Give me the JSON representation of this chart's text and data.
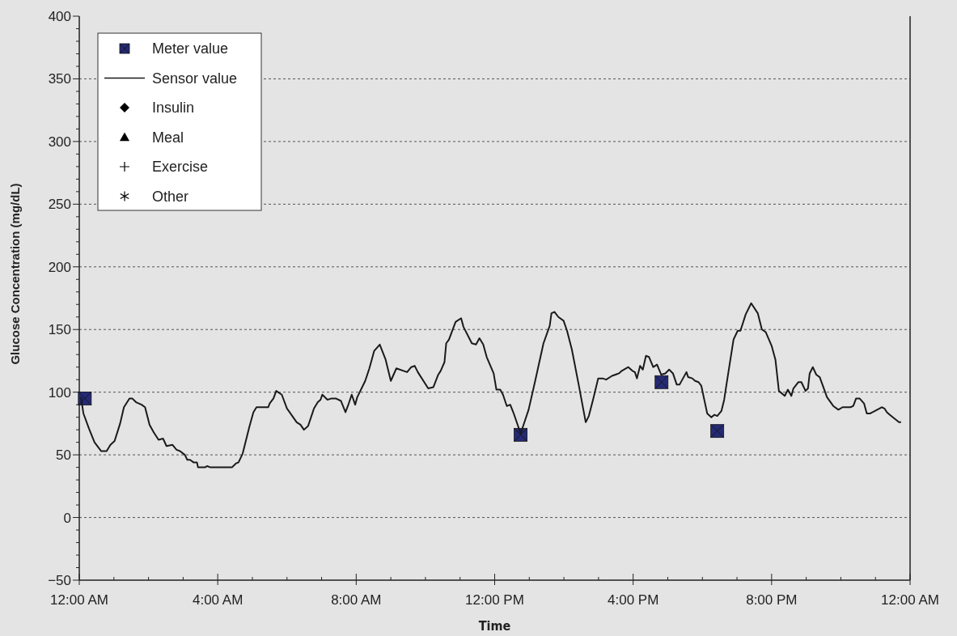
{
  "chart_data": {
    "type": "line",
    "xlabel": "Time",
    "ylabel": "Glucose Concentration (mg/dL)",
    "xlim": [
      0,
      24
    ],
    "xticks": [
      {
        "value": 0,
        "label": "12:00 AM"
      },
      {
        "value": 1,
        "label": null
      },
      {
        "value": 2,
        "label": null
      },
      {
        "value": 3,
        "label": null
      },
      {
        "value": 4,
        "label": "4:00 AM"
      },
      {
        "value": 5,
        "label": null
      },
      {
        "value": 6,
        "label": null
      },
      {
        "value": 7,
        "label": null
      },
      {
        "value": 8,
        "label": "8:00 AM"
      },
      {
        "value": 9,
        "label": null
      },
      {
        "value": 10,
        "label": null
      },
      {
        "value": 11,
        "label": null
      },
      {
        "value": 12,
        "label": "12:00 PM"
      },
      {
        "value": 13,
        "label": null
      },
      {
        "value": 14,
        "label": null
      },
      {
        "value": 15,
        "label": null
      },
      {
        "value": 16,
        "label": "4:00 PM"
      },
      {
        "value": 17,
        "label": null
      },
      {
        "value": 18,
        "label": null
      },
      {
        "value": 19,
        "label": null
      },
      {
        "value": 20,
        "label": "8:00 PM"
      },
      {
        "value": 21,
        "label": null
      },
      {
        "value": 22,
        "label": null
      },
      {
        "value": 23,
        "label": null
      },
      {
        "value": 24,
        "label": "12:00 AM"
      }
    ],
    "ylim": [
      -50,
      400
    ],
    "yticks": [
      {
        "value": -50,
        "label": "−50"
      },
      {
        "value": -40,
        "label": null
      },
      {
        "value": -30,
        "label": null
      },
      {
        "value": -20,
        "label": null
      },
      {
        "value": -10,
        "label": null
      },
      0,
      {
        "value": 10,
        "label": null
      },
      {
        "value": 20,
        "label": null
      },
      {
        "value": 30,
        "label": null
      },
      {
        "value": 40,
        "label": null
      },
      50,
      {
        "value": 60,
        "label": null
      },
      {
        "value": 70,
        "label": null
      },
      {
        "value": 80,
        "label": null
      },
      {
        "value": 90,
        "label": null
      },
      100,
      {
        "value": 110,
        "label": null
      },
      {
        "value": 120,
        "label": null
      },
      {
        "value": 130,
        "label": null
      },
      {
        "value": 140,
        "label": null
      },
      150,
      {
        "value": 160,
        "label": null
      },
      {
        "value": 170,
        "label": null
      },
      {
        "value": 180,
        "label": null
      },
      {
        "value": 190,
        "label": null
      },
      200,
      {
        "value": 210,
        "label": null
      },
      {
        "value": 220,
        "label": null
      },
      {
        "value": 230,
        "label": null
      },
      {
        "value": 240,
        "label": null
      },
      250,
      {
        "value": 260,
        "label": null
      },
      {
        "value": 270,
        "label": null
      },
      {
        "value": 280,
        "label": null
      },
      {
        "value": 290,
        "label": null
      },
      300,
      {
        "value": 310,
        "label": null
      },
      {
        "value": 320,
        "label": null
      },
      {
        "value": 330,
        "label": null
      },
      {
        "value": 340,
        "label": null
      },
      350,
      {
        "value": 360,
        "label": null
      },
      {
        "value": 370,
        "label": null
      },
      {
        "value": 380,
        "label": null
      },
      {
        "value": 390,
        "label": null
      },
      400
    ],
    "grid": "y",
    "legend": "top left",
    "series": [
      {
        "name": "Meter value",
        "type": "scatter",
        "marker": "square",
        "color": "#252a75",
        "x": [
          0.16,
          12.75,
          16.82,
          18.43
        ],
        "values": [
          95,
          66,
          108,
          69
        ]
      },
      {
        "name": "Sensor value",
        "marker": "none",
        "color": "#1a1a1a",
        "x": [
          0.05,
          0.12,
          0.28,
          0.44,
          0.63,
          0.79,
          0.9,
          1.02,
          1.18,
          1.29,
          1.45,
          1.53,
          1.64,
          1.8,
          1.9,
          2.03,
          2.15,
          2.29,
          2.42,
          2.52,
          2.69,
          2.81,
          2.91,
          3.05,
          3.12,
          3.2,
          3.3,
          3.4,
          3.43,
          3.63,
          3.69,
          3.79,
          4.41,
          4.52,
          4.6,
          4.72,
          4.91,
          5.03,
          5.12,
          5.46,
          5.5,
          5.61,
          5.69,
          5.85,
          6.0,
          6.28,
          6.39,
          6.49,
          6.61,
          6.78,
          6.89,
          6.97,
          7.02,
          7.17,
          7.29,
          7.41,
          7.56,
          7.69,
          7.76,
          7.87,
          7.97,
          8.03,
          8.26,
          8.38,
          8.52,
          8.68,
          8.85,
          9.0,
          9.16,
          9.47,
          9.59,
          9.69,
          9.78,
          10.08,
          10.23,
          10.37,
          10.44,
          10.55,
          10.6,
          10.68,
          10.87,
          11.03,
          11.1,
          11.34,
          11.46,
          11.56,
          11.67,
          11.77,
          11.97,
          12.05,
          12.16,
          12.24,
          12.35,
          12.45,
          12.55,
          12.75,
          12.98,
          13.17,
          13.41,
          13.59,
          13.64,
          13.73,
          13.84,
          13.99,
          14.09,
          14.23,
          14.42,
          14.63,
          14.72,
          14.85,
          14.99,
          15.12,
          15.22,
          15.39,
          15.59,
          15.67,
          15.86,
          15.98,
          16.05,
          16.11,
          16.2,
          16.28,
          16.37,
          16.46,
          16.58,
          16.69,
          16.81,
          16.93,
          17.04,
          17.15,
          17.26,
          17.34,
          17.54,
          17.59,
          17.71,
          17.79,
          17.89,
          17.97,
          18.14,
          18.26,
          18.35,
          18.43,
          18.55,
          18.63,
          18.69,
          18.9,
          19.02,
          19.1,
          19.25,
          19.41,
          19.6,
          19.72,
          19.83,
          20.0,
          20.11,
          20.21,
          20.38,
          20.47,
          20.57,
          20.63,
          20.77,
          20.86,
          20.98,
          21.05,
          21.1,
          21.19,
          21.29,
          21.39,
          21.6,
          21.78,
          21.93,
          22.05,
          22.28,
          22.36,
          22.44,
          22.54,
          22.67,
          22.75,
          22.85,
          23.18,
          23.26,
          23.33,
          23.41,
          23.68,
          23.74
        ],
        "values": [
          96,
          83,
          71,
          60,
          53,
          53,
          58,
          61,
          75,
          88,
          95,
          95,
          92,
          90,
          88,
          74,
          68,
          62,
          63,
          57,
          58,
          54,
          53,
          50,
          46,
          46,
          44,
          44,
          40,
          40,
          41,
          40,
          40,
          43,
          44,
          51,
          72,
          84,
          88,
          88,
          91,
          95,
          101,
          98,
          87,
          76,
          74,
          70,
          73,
          87,
          92,
          94,
          98,
          94,
          95,
          95,
          93,
          84,
          89,
          98,
          90,
          96,
          109,
          119,
          133,
          138,
          126,
          109,
          119,
          116,
          120,
          121,
          116,
          103,
          104,
          114,
          117,
          124,
          139,
          142,
          156,
          159,
          152,
          139,
          138,
          143,
          138,
          128,
          115,
          102,
          102,
          98,
          89,
          90,
          83,
          67,
          86,
          109,
          139,
          153,
          163,
          164,
          160,
          157,
          149,
          134,
          107,
          76,
          81,
          95,
          111,
          111,
          110,
          113,
          115,
          117,
          120,
          117,
          116,
          111,
          121,
          118,
          129,
          128,
          120,
          122,
          114,
          115,
          118,
          115,
          106,
          106,
          116,
          112,
          111,
          109,
          108,
          105,
          83,
          80,
          82,
          81,
          85,
          94,
          105,
          142,
          149,
          149,
          162,
          171,
          163,
          150,
          148,
          137,
          126,
          101,
          97,
          102,
          97,
          103,
          108,
          108,
          101,
          103,
          115,
          120,
          114,
          112,
          96,
          89,
          86,
          88,
          88,
          89,
          95,
          95,
          91,
          83,
          83,
          88,
          87,
          84,
          82,
          76,
          76
        ]
      },
      {
        "name": "Insulin",
        "type": "scatter",
        "marker": "diamond",
        "color": "#000000"
      },
      {
        "name": "Meal",
        "type": "scatter",
        "marker": "triangle",
        "color": "#000000"
      },
      {
        "name": "Exercise",
        "type": "scatter",
        "marker": "cross",
        "color": "#000000"
      },
      {
        "name": "Other",
        "type": "scatter",
        "marker": "star",
        "color": "#000000"
      }
    ]
  }
}
